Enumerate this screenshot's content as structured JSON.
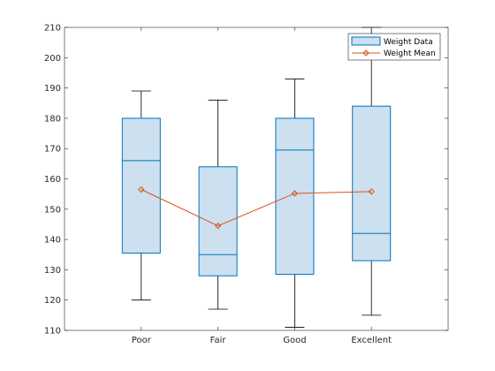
{
  "chart_data": {
    "type": "box",
    "title": "",
    "xlabel": "",
    "ylabel": "",
    "categories": [
      "Poor",
      "Fair",
      "Good",
      "Excellent"
    ],
    "ylim": [
      110,
      210
    ],
    "yticks": [
      110,
      120,
      130,
      140,
      150,
      160,
      170,
      180,
      190,
      200,
      210
    ],
    "grid": false,
    "legend_position": "top-right",
    "boxes": {
      "name": "Weight Data",
      "color": "#0072bd",
      "fill": "#cce0f0",
      "stats": [
        {
          "category": "Poor",
          "whisker_low": 120,
          "q1": 135.5,
          "median": 166,
          "q3": 180,
          "whisker_high": 189
        },
        {
          "category": "Fair",
          "whisker_low": 117,
          "q1": 128,
          "median": 135,
          "q3": 164,
          "whisker_high": 186
        },
        {
          "category": "Good",
          "whisker_low": 111,
          "q1": 128.5,
          "median": 169.5,
          "q3": 180,
          "whisker_high": 193
        },
        {
          "category": "Excellent",
          "whisker_low": 115,
          "q1": 133,
          "median": 142,
          "q3": 184,
          "whisker_high": 210
        }
      ]
    },
    "series": [
      {
        "name": "Weight Mean",
        "type": "line",
        "marker": "diamond",
        "color": "#d95319",
        "values": [
          156.5,
          144.5,
          155.2,
          155.8
        ]
      }
    ]
  }
}
